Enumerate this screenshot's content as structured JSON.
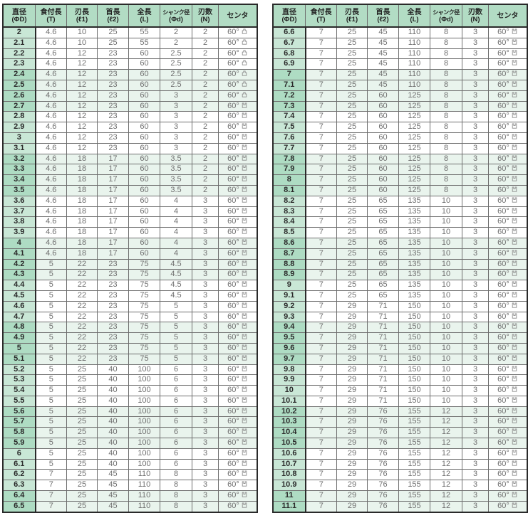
{
  "colors": {
    "header_bg": "#b2dcc4",
    "diameter_col_bg_light": "#c9e7d6",
    "diameter_col_bg_dark": "#aedcc3",
    "row_band_green": "#e9f4ed",
    "row_band_white": "#ffffff",
    "border_dark": "#2a2a2a",
    "border_inner": "#6e6e6e",
    "data_text": "#6f6f6f",
    "diameter_text": "#2b2b2b"
  },
  "center_symbols": {
    "convex": "凸",
    "concave": "凹"
  },
  "columns": [
    {
      "label": "直径",
      "sub": "(ΦD)"
    },
    {
      "label": "食付長",
      "sub": "(T)"
    },
    {
      "label": "刃長",
      "sub": "(ℓ1)"
    },
    {
      "label": "首長",
      "sub": "(ℓ2)"
    },
    {
      "label": "全長",
      "sub": "(L)"
    },
    {
      "label": "シャンク径",
      "sub": "(Φd)"
    },
    {
      "label": "刃数",
      "sub": "(N)"
    },
    {
      "label": "センタ",
      "sub": ""
    }
  ],
  "tables": [
    {
      "id": "left",
      "rows": [
        [
          "2",
          "4.6",
          "10",
          "25",
          "55",
          "2",
          "2",
          "60°凸"
        ],
        [
          "2.1",
          "4.6",
          "10",
          "25",
          "55",
          "2",
          "2",
          "60°凸"
        ],
        [
          "2.2",
          "4.6",
          "12",
          "23",
          "60",
          "2.5",
          "2",
          "60°凸"
        ],
        [
          "2.3",
          "4.6",
          "12",
          "23",
          "60",
          "2.5",
          "2",
          "60°凸"
        ],
        [
          "2.4",
          "4.6",
          "12",
          "23",
          "60",
          "2.5",
          "2",
          "60°凸"
        ],
        [
          "2.5",
          "4.6",
          "12",
          "23",
          "60",
          "2.5",
          "2",
          "60°凸"
        ],
        [
          "2.6",
          "4.6",
          "12",
          "23",
          "60",
          "3",
          "2",
          "60°凸"
        ],
        [
          "2.7",
          "4.6",
          "12",
          "23",
          "60",
          "3",
          "2",
          "60°凹"
        ],
        [
          "2.8",
          "4.6",
          "12",
          "23",
          "60",
          "3",
          "2",
          "60°凹"
        ],
        [
          "2.9",
          "4.6",
          "12",
          "23",
          "60",
          "3",
          "2",
          "60°凹"
        ],
        [
          "3",
          "4.6",
          "12",
          "23",
          "60",
          "3",
          "2",
          "60°凹"
        ],
        [
          "3.1",
          "4.6",
          "12",
          "23",
          "60",
          "3",
          "2",
          "60°凹"
        ],
        [
          "3.2",
          "4.6",
          "18",
          "17",
          "60",
          "3.5",
          "2",
          "60°凹"
        ],
        [
          "3.3",
          "4.6",
          "18",
          "17",
          "60",
          "3.5",
          "2",
          "60°凹"
        ],
        [
          "3.4",
          "4.6",
          "18",
          "17",
          "60",
          "3.5",
          "2",
          "60°凹"
        ],
        [
          "3.5",
          "4.6",
          "18",
          "17",
          "60",
          "3.5",
          "2",
          "60°凹"
        ],
        [
          "3.6",
          "4.6",
          "18",
          "17",
          "60",
          "4",
          "3",
          "60°凹"
        ],
        [
          "3.7",
          "4.6",
          "18",
          "17",
          "60",
          "4",
          "3",
          "60°凹"
        ],
        [
          "3.8",
          "4.6",
          "18",
          "17",
          "60",
          "4",
          "3",
          "60°凹"
        ],
        [
          "3.9",
          "4.6",
          "18",
          "17",
          "60",
          "4",
          "3",
          "60°凹"
        ],
        [
          "4",
          "4.6",
          "18",
          "17",
          "60",
          "4",
          "3",
          "60°凹"
        ],
        [
          "4.1",
          "4.6",
          "18",
          "17",
          "60",
          "4",
          "3",
          "60°凹"
        ],
        [
          "4.2",
          "5",
          "22",
          "23",
          "75",
          "4.5",
          "3",
          "60°凹"
        ],
        [
          "4.3",
          "5",
          "22",
          "23",
          "75",
          "4.5",
          "3",
          "60°凹"
        ],
        [
          "4.4",
          "5",
          "22",
          "23",
          "75",
          "4.5",
          "3",
          "60°凹"
        ],
        [
          "4.5",
          "5",
          "22",
          "23",
          "75",
          "4.5",
          "3",
          "60°凹"
        ],
        [
          "4.6",
          "5",
          "22",
          "23",
          "75",
          "5",
          "3",
          "60°凹"
        ],
        [
          "4.7",
          "5",
          "22",
          "23",
          "75",
          "5",
          "3",
          "60°凹"
        ],
        [
          "4.8",
          "5",
          "22",
          "23",
          "75",
          "5",
          "3",
          "60°凹"
        ],
        [
          "4.9",
          "5",
          "22",
          "23",
          "75",
          "5",
          "3",
          "60°凹"
        ],
        [
          "5",
          "5",
          "22",
          "23",
          "75",
          "5",
          "3",
          "60°凹"
        ],
        [
          "5.1",
          "5",
          "22",
          "23",
          "75",
          "5",
          "3",
          "60°凹"
        ],
        [
          "5.2",
          "5",
          "25",
          "40",
          "100",
          "6",
          "3",
          "60°凹"
        ],
        [
          "5.3",
          "5",
          "25",
          "40",
          "100",
          "6",
          "3",
          "60°凹"
        ],
        [
          "5.4",
          "5",
          "25",
          "40",
          "100",
          "6",
          "3",
          "60°凹"
        ],
        [
          "5.5",
          "5",
          "25",
          "40",
          "100",
          "6",
          "3",
          "60°凹"
        ],
        [
          "5.6",
          "5",
          "25",
          "40",
          "100",
          "6",
          "3",
          "60°凹"
        ],
        [
          "5.7",
          "5",
          "25",
          "40",
          "100",
          "6",
          "3",
          "60°凹"
        ],
        [
          "5.8",
          "5",
          "25",
          "40",
          "100",
          "6",
          "3",
          "60°凹"
        ],
        [
          "5.9",
          "5",
          "25",
          "40",
          "100",
          "6",
          "3",
          "60°凹"
        ],
        [
          "6",
          "5",
          "25",
          "40",
          "100",
          "6",
          "3",
          "60°凹"
        ],
        [
          "6.1",
          "5",
          "25",
          "40",
          "100",
          "6",
          "3",
          "60°凹"
        ],
        [
          "6.2",
          "7",
          "25",
          "45",
          "110",
          "8",
          "3",
          "60°凹"
        ],
        [
          "6.3",
          "7",
          "25",
          "45",
          "110",
          "8",
          "3",
          "60°凹"
        ],
        [
          "6.4",
          "7",
          "25",
          "45",
          "110",
          "8",
          "3",
          "60°凹"
        ],
        [
          "6.5",
          "7",
          "25",
          "45",
          "110",
          "8",
          "3",
          "60°凹"
        ]
      ]
    },
    {
      "id": "right",
      "rows": [
        [
          "6.6",
          "7",
          "25",
          "45",
          "110",
          "8",
          "3",
          "60°凹"
        ],
        [
          "6.7",
          "7",
          "25",
          "45",
          "110",
          "8",
          "3",
          "60°凹"
        ],
        [
          "6.8",
          "7",
          "25",
          "45",
          "110",
          "8",
          "3",
          "60°凹"
        ],
        [
          "6.9",
          "7",
          "25",
          "45",
          "110",
          "8",
          "3",
          "60°凹"
        ],
        [
          "7",
          "7",
          "25",
          "45",
          "110",
          "8",
          "3",
          "60°凹"
        ],
        [
          "7.1",
          "7",
          "25",
          "45",
          "110",
          "8",
          "3",
          "60°凹"
        ],
        [
          "7.2",
          "7",
          "25",
          "60",
          "125",
          "8",
          "3",
          "60°凹"
        ],
        [
          "7.3",
          "7",
          "25",
          "60",
          "125",
          "8",
          "3",
          "60°凹"
        ],
        [
          "7.4",
          "7",
          "25",
          "60",
          "125",
          "8",
          "3",
          "60°凹"
        ],
        [
          "7.5",
          "7",
          "25",
          "60",
          "125",
          "8",
          "3",
          "60°凹"
        ],
        [
          "7.6",
          "7",
          "25",
          "60",
          "125",
          "8",
          "3",
          "60°凹"
        ],
        [
          "7.7",
          "7",
          "25",
          "60",
          "125",
          "8",
          "3",
          "60°凹"
        ],
        [
          "7.8",
          "7",
          "25",
          "60",
          "125",
          "8",
          "3",
          "60°凹"
        ],
        [
          "7.9",
          "7",
          "25",
          "60",
          "125",
          "8",
          "3",
          "60°凹"
        ],
        [
          "8",
          "7",
          "25",
          "60",
          "125",
          "8",
          "3",
          "60°凹"
        ],
        [
          "8.1",
          "7",
          "25",
          "60",
          "125",
          "8",
          "3",
          "60°凹"
        ],
        [
          "8.2",
          "7",
          "25",
          "65",
          "135",
          "10",
          "3",
          "60°凹"
        ],
        [
          "8.3",
          "7",
          "25",
          "65",
          "135",
          "10",
          "3",
          "60°凹"
        ],
        [
          "8.4",
          "7",
          "25",
          "65",
          "135",
          "10",
          "3",
          "60°凹"
        ],
        [
          "8.5",
          "7",
          "25",
          "65",
          "135",
          "10",
          "3",
          "60°凹"
        ],
        [
          "8.6",
          "7",
          "25",
          "65",
          "135",
          "10",
          "3",
          "60°凹"
        ],
        [
          "8.7",
          "7",
          "25",
          "65",
          "135",
          "10",
          "3",
          "60°凹"
        ],
        [
          "8.8",
          "7",
          "25",
          "65",
          "135",
          "10",
          "3",
          "60°凹"
        ],
        [
          "8.9",
          "7",
          "25",
          "65",
          "135",
          "10",
          "3",
          "60°凹"
        ],
        [
          "9",
          "7",
          "25",
          "65",
          "135",
          "10",
          "3",
          "60°凹"
        ],
        [
          "9.1",
          "7",
          "25",
          "65",
          "135",
          "10",
          "3",
          "60°凹"
        ],
        [
          "9.2",
          "7",
          "29",
          "71",
          "150",
          "10",
          "3",
          "60°凹"
        ],
        [
          "9.3",
          "7",
          "29",
          "71",
          "150",
          "10",
          "3",
          "60°凹"
        ],
        [
          "9.4",
          "7",
          "29",
          "71",
          "150",
          "10",
          "3",
          "60°凹"
        ],
        [
          "9.5",
          "7",
          "29",
          "71",
          "150",
          "10",
          "3",
          "60°凹"
        ],
        [
          "9.6",
          "7",
          "29",
          "71",
          "150",
          "10",
          "3",
          "60°凹"
        ],
        [
          "9.7",
          "7",
          "29",
          "71",
          "150",
          "10",
          "3",
          "60°凹"
        ],
        [
          "9.8",
          "7",
          "29",
          "71",
          "150",
          "10",
          "3",
          "60°凹"
        ],
        [
          "9.9",
          "7",
          "29",
          "71",
          "150",
          "10",
          "3",
          "60°凹"
        ],
        [
          "10",
          "7",
          "29",
          "71",
          "150",
          "10",
          "3",
          "60°凹"
        ],
        [
          "10.1",
          "7",
          "29",
          "71",
          "150",
          "10",
          "3",
          "60°凹"
        ],
        [
          "10.2",
          "7",
          "29",
          "76",
          "155",
          "12",
          "3",
          "60°凹"
        ],
        [
          "10.3",
          "7",
          "29",
          "76",
          "155",
          "12",
          "3",
          "60°凹"
        ],
        [
          "10.4",
          "7",
          "29",
          "76",
          "155",
          "12",
          "3",
          "60°凹"
        ],
        [
          "10.5",
          "7",
          "29",
          "76",
          "155",
          "12",
          "3",
          "60°凹"
        ],
        [
          "10.6",
          "7",
          "29",
          "76",
          "155",
          "12",
          "3",
          "60°凹"
        ],
        [
          "10.7",
          "7",
          "29",
          "76",
          "155",
          "12",
          "3",
          "60°凹"
        ],
        [
          "10.8",
          "7",
          "29",
          "76",
          "155",
          "12",
          "3",
          "60°凹"
        ],
        [
          "10.9",
          "7",
          "29",
          "76",
          "155",
          "12",
          "3",
          "60°凹"
        ],
        [
          "11",
          "7",
          "29",
          "76",
          "155",
          "12",
          "3",
          "60°凹"
        ],
        [
          "11.1",
          "7",
          "29",
          "76",
          "155",
          "12",
          "3",
          "60°凹"
        ]
      ]
    }
  ]
}
